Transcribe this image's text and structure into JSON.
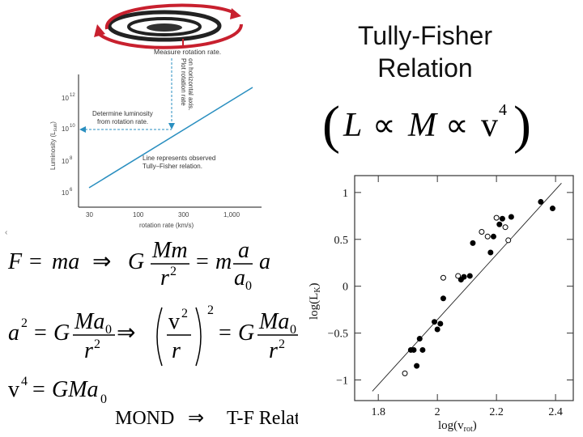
{
  "slide": {
    "title_line1": "Tully-Fisher",
    "title_line2": "Relation"
  },
  "title_formula": {
    "open": "(",
    "L": "L",
    "prop1": "∝",
    "M": "M",
    "prop2": "∝",
    "v": "v",
    "exp": "4",
    "close": ")"
  },
  "inset": {
    "top_label": "Measure rotation rate.",
    "vertical_note_1": "Plot rotation rate",
    "vertical_note_2": "on horizontal axis.",
    "determine_1": "Determine luminosity",
    "determine_2": "from rotation rate.",
    "line_note_1": "Line represents observed",
    "line_note_2": "Tully–Fisher relation.",
    "y_label": "Luminosity (L",
    "y_label_sub": "sun",
    "y_label_close": ")",
    "y_ticks": [
      {
        "base": "10",
        "exp": "12"
      },
      {
        "base": "10",
        "exp": "10"
      },
      {
        "base": "10",
        "exp": "8"
      },
      {
        "base": "10",
        "exp": "6"
      }
    ],
    "x_ticks": [
      "30",
      "100",
      "300",
      "1,000"
    ],
    "x_label": "rotation rate (km/s)",
    "colors": {
      "line": "#2a8fc0",
      "arrow": "#c8202e",
      "galaxy": "#222222"
    }
  },
  "equations": {
    "eq1": {
      "F": "F",
      "eq_a": "=",
      "ma": "ma",
      "implies": "⇒",
      "G": "G",
      "Mm": "Mm",
      "r": "r",
      "r_exp": "2",
      "eq_b": "=",
      "m": "m",
      "a_num": "a",
      "a0": "a",
      "a0_sub": "0",
      "a_last": "a"
    },
    "eq2": {
      "a": "a",
      "a_exp": "2",
      "eq_a": "=",
      "G": "G",
      "Ma": "Ma",
      "Ma_sub": "0",
      "r": "r",
      "r_exp": "2",
      "implies": "⇒",
      "v": "v",
      "v_exp": "2",
      "r2": "r",
      "outer_exp": "2",
      "eq_b": "=",
      "G2": "G",
      "Ma2": "Ma",
      "Ma2_sub": "0",
      "r3": "r",
      "r3_exp": "2"
    },
    "eq3": {
      "v": "v",
      "v_exp": "4",
      "eq": "=",
      "GMa": "GMa",
      "sub": "0"
    },
    "eq4": {
      "mond": "MOND",
      "implies": "⇒",
      "result": "T-F Relation!!"
    }
  },
  "chart_data": {
    "type": "scatter",
    "title": "",
    "xlabel": "log(v",
    "xlabel_sub": "rot",
    "xlabel_close": ")",
    "ylabel": "log(L",
    "ylabel_sub": "K",
    "ylabel_close": ")",
    "xlim": [
      1.72,
      2.46
    ],
    "ylim": [
      -1.22,
      1.18
    ],
    "x_ticks": [
      1.8,
      2.0,
      2.2,
      2.4
    ],
    "x_tick_labels": [
      "1.8",
      "2",
      "2.2",
      "2.4"
    ],
    "y_ticks": [
      1,
      0.5,
      0,
      -0.5,
      -1
    ],
    "y_tick_labels": [
      "1",
      "0.5",
      "0",
      "−0.5",
      "−1"
    ],
    "grid": false,
    "fit_line": {
      "x": [
        1.78,
        2.42
      ],
      "y": [
        -1.12,
        1.1
      ]
    },
    "series": [
      {
        "marker": "filled",
        "points": [
          [
            1.91,
            -0.68
          ],
          [
            1.92,
            -0.68
          ],
          [
            1.93,
            -0.85
          ],
          [
            1.94,
            -0.56
          ],
          [
            1.95,
            -0.68
          ],
          [
            1.99,
            -0.38
          ],
          [
            2.0,
            -0.46
          ],
          [
            2.01,
            -0.4
          ],
          [
            2.02,
            -0.13
          ],
          [
            2.08,
            0.07
          ],
          [
            2.09,
            0.1
          ],
          [
            2.11,
            0.11
          ],
          [
            2.12,
            0.46
          ],
          [
            2.18,
            0.36
          ],
          [
            2.19,
            0.53
          ],
          [
            2.21,
            0.66
          ],
          [
            2.22,
            0.72
          ],
          [
            2.25,
            0.74
          ],
          [
            2.35,
            0.9
          ],
          [
            2.39,
            0.83
          ]
        ]
      },
      {
        "marker": "open",
        "points": [
          [
            1.89,
            -0.93
          ],
          [
            2.02,
            0.09
          ],
          [
            2.07,
            0.11
          ],
          [
            2.15,
            0.58
          ],
          [
            2.17,
            0.53
          ],
          [
            2.2,
            0.73
          ],
          [
            2.23,
            0.63
          ],
          [
            2.24,
            0.49
          ]
        ]
      }
    ]
  }
}
